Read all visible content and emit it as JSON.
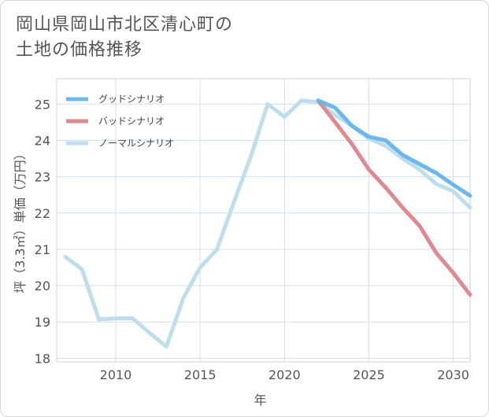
{
  "title_lines": [
    "岡山県岡山市北区清心町の",
    "土地の価格推移"
  ],
  "chart_data": {
    "type": "line",
    "title": "岡山県岡山市北区清心町の土地の価格推移",
    "xlabel": "年",
    "ylabel": "坪（3.3㎡）単価（万円）",
    "xlim": [
      2006.5,
      2031
    ],
    "ylim": [
      17.9,
      25.7
    ],
    "x_ticks": [
      2010,
      2015,
      2020,
      2025,
      2030
    ],
    "y_ticks": [
      18,
      19,
      20,
      21,
      22,
      23,
      24,
      25
    ],
    "grid": true,
    "legend_position": "top-left",
    "series": [
      {
        "name": "グッドシナリオ",
        "color": "#6ab8ee",
        "x": [
          2022,
          2023,
          2024,
          2025,
          2026,
          2027,
          2028,
          2029,
          2030,
          2031
        ],
        "values": [
          25.1,
          24.9,
          24.4,
          24.1,
          24.0,
          23.6,
          23.35,
          23.1,
          22.78,
          22.48
        ]
      },
      {
        "name": "バッドシナリオ",
        "color": "#de8a8f",
        "x": [
          2022,
          2023,
          2024,
          2025,
          2026,
          2027,
          2028,
          2029,
          2030,
          2031
        ],
        "values": [
          25.1,
          24.5,
          23.9,
          23.2,
          22.7,
          22.15,
          21.65,
          20.9,
          20.35,
          19.75
        ]
      },
      {
        "name": "ノーマルシナリオ",
        "color": "#bfdeec",
        "x": [
          2007,
          2008,
          2009,
          2010,
          2011,
          2012,
          2013,
          2014,
          2015,
          2016,
          2017,
          2018,
          2019,
          2020,
          2021,
          2022,
          2023,
          2024,
          2025,
          2026,
          2027,
          2028,
          2029,
          2030,
          2031
        ],
        "values": [
          20.8,
          20.45,
          19.07,
          19.1,
          19.1,
          18.7,
          18.32,
          19.65,
          20.5,
          21.0,
          22.3,
          23.55,
          25.0,
          24.65,
          25.1,
          25.05,
          24.7,
          24.4,
          24.05,
          23.85,
          23.5,
          23.2,
          22.8,
          22.6,
          22.15
        ]
      }
    ]
  }
}
